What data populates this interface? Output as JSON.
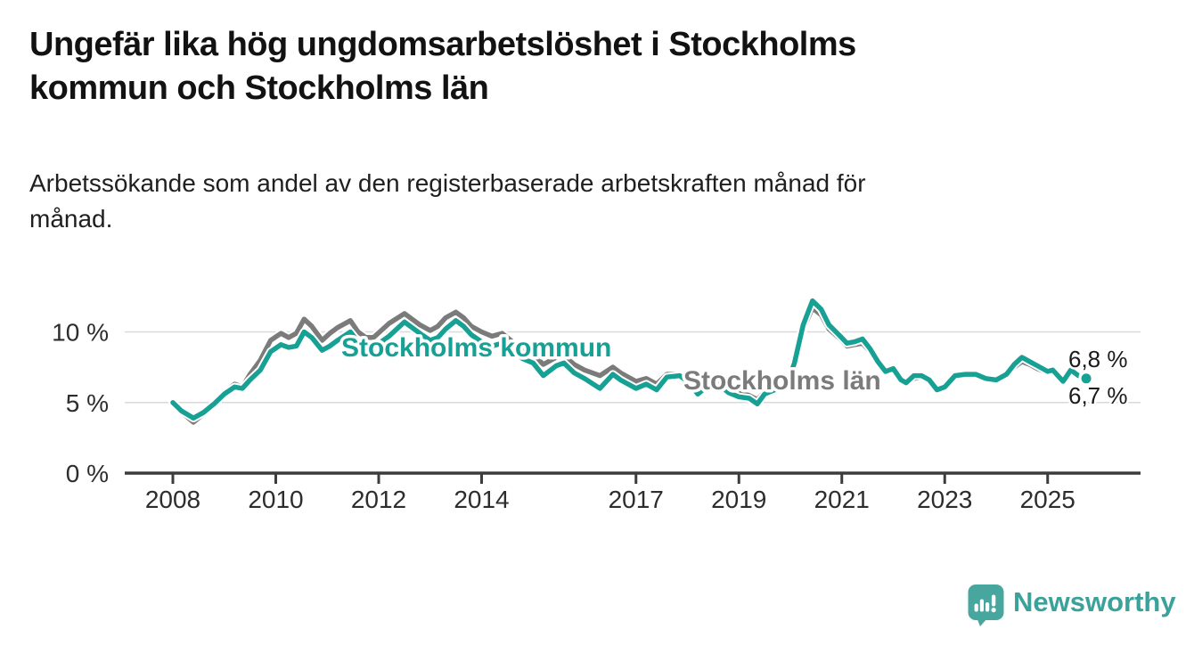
{
  "title": "Ungefär lika hög ungdomsarbetslöshet i Stockholms\nkommun och Stockholms län",
  "subtitle": "Arbetssökande som andel av den registerbaserade arbetskraften månad för\nmånad.",
  "branding": {
    "logo_text": "Newsworthy",
    "logo_icon": "speech-bubble-with-bar-chart-and-exclamation"
  },
  "colors": {
    "kommun": "#17a094",
    "lan": "#7b7b7b",
    "grid": "#d9d9d9",
    "axis": "#3c3c3c",
    "tick_text": "#2d2d2d",
    "value_text": "#1a1a1a",
    "logo": "#47a79f",
    "logo_text": "#3ba29b"
  },
  "chart_data": {
    "type": "line",
    "unit": "%",
    "grid": "horizontal",
    "x_range_years": [
      2007.1,
      2026.8
    ],
    "y_range": [
      0,
      12.6
    ],
    "x_tick_values": [
      2008,
      2010,
      2012,
      2014,
      2017,
      2019,
      2021,
      2023,
      2025
    ],
    "x_tick_labels": [
      "2008",
      "2010",
      "2012",
      "2014",
      "2017",
      "2019",
      "2021",
      "2023",
      "2025"
    ],
    "y_ticks": [
      {
        "value": 0,
        "label": "0 %"
      },
      {
        "value": 5,
        "label": "5 %"
      },
      {
        "value": 10,
        "label": "10 %"
      }
    ],
    "x": [
      2008.0,
      2008.17,
      2008.4,
      2008.6,
      2008.8,
      2009.0,
      2009.2,
      2009.35,
      2009.5,
      2009.7,
      2009.9,
      2010.1,
      2010.25,
      2010.4,
      2010.55,
      2010.7,
      2010.9,
      2011.05,
      2011.2,
      2011.45,
      2011.6,
      2011.75,
      2011.9,
      2012.05,
      2012.2,
      2012.5,
      2012.65,
      2012.8,
      2013.0,
      2013.15,
      2013.3,
      2013.5,
      2013.65,
      2013.8,
      2014.0,
      2014.2,
      2014.4,
      2014.6,
      2014.8,
      2015.0,
      2015.2,
      2015.45,
      2015.6,
      2015.8,
      2016.0,
      2016.3,
      2016.55,
      2016.7,
      2017.0,
      2017.2,
      2017.4,
      2017.6,
      2017.85,
      2018.0,
      2018.2,
      2018.4,
      2018.6,
      2018.8,
      2019.0,
      2019.2,
      2019.36,
      2019.5,
      2019.7,
      2019.9,
      2020.08,
      2020.25,
      2020.43,
      2020.6,
      2020.75,
      2020.97,
      2021.1,
      2021.25,
      2021.4,
      2021.55,
      2021.7,
      2021.85,
      2022.0,
      2022.15,
      2022.25,
      2022.4,
      2022.55,
      2022.7,
      2022.85,
      2023.0,
      2023.2,
      2023.4,
      2023.6,
      2023.8,
      2024.0,
      2024.2,
      2024.35,
      2024.5,
      2024.65,
      2024.8,
      2025.0,
      2025.1,
      2025.3,
      2025.45,
      2025.6,
      2025.75
    ],
    "series": [
      {
        "name": "Stockholms län",
        "color": "#7b7b7b",
        "final_label": "6,8 %",
        "final_value": 6.8,
        "values": [
          5.0,
          4.3,
          3.6,
          4.2,
          4.9,
          5.7,
          6.3,
          6.1,
          7.0,
          8.0,
          9.4,
          9.9,
          9.6,
          9.9,
          10.9,
          10.4,
          9.4,
          9.9,
          10.3,
          10.8,
          10.0,
          9.6,
          9.6,
          10.1,
          10.6,
          11.3,
          10.9,
          10.5,
          10.1,
          10.4,
          11.0,
          11.4,
          11.0,
          10.4,
          10.0,
          9.7,
          9.9,
          9.3,
          8.8,
          8.4,
          7.7,
          8.2,
          8.3,
          7.7,
          7.3,
          6.9,
          7.5,
          7.1,
          6.5,
          6.7,
          6.3,
          7.0,
          7.0,
          6.7,
          6.0,
          6.4,
          6.5,
          6.0,
          5.7,
          5.5,
          5.2,
          5.8,
          6.0,
          6.1,
          7.8,
          10.2,
          11.7,
          11.2,
          10.2,
          9.5,
          9.0,
          9.1,
          9.2,
          8.6,
          7.8,
          7.2,
          7.3,
          6.5,
          6.3,
          6.7,
          6.8,
          6.5,
          5.9,
          6.1,
          6.8,
          6.9,
          6.9,
          6.6,
          6.6,
          6.9,
          7.5,
          7.9,
          7.7,
          7.4,
          7.1,
          7.2,
          6.6,
          7.2,
          6.9,
          6.8
        ]
      },
      {
        "name": "Stockholms kommun",
        "color": "#17a094",
        "final_label": "6,7 %",
        "final_value": 6.7,
        "values": [
          5.0,
          4.4,
          3.9,
          4.3,
          4.9,
          5.6,
          6.1,
          6.0,
          6.6,
          7.3,
          8.6,
          9.1,
          8.9,
          9.0,
          10.0,
          9.6,
          8.7,
          9.0,
          9.4,
          10.0,
          9.3,
          8.9,
          8.9,
          9.3,
          9.7,
          10.7,
          10.3,
          9.9,
          9.4,
          9.6,
          10.2,
          10.8,
          10.4,
          9.8,
          9.3,
          9.0,
          9.2,
          8.6,
          8.1,
          7.8,
          6.9,
          7.6,
          7.8,
          7.1,
          6.7,
          6.0,
          7.0,
          6.6,
          6.0,
          6.3,
          5.9,
          6.8,
          6.9,
          6.5,
          5.6,
          6.2,
          6.3,
          5.7,
          5.4,
          5.3,
          4.9,
          5.6,
          5.9,
          6.0,
          7.8,
          10.5,
          12.2,
          11.6,
          10.5,
          9.7,
          9.2,
          9.3,
          9.5,
          8.8,
          7.9,
          7.2,
          7.4,
          6.6,
          6.4,
          6.9,
          6.9,
          6.6,
          5.9,
          6.1,
          6.9,
          7.0,
          7.0,
          6.7,
          6.6,
          7.0,
          7.7,
          8.2,
          7.9,
          7.6,
          7.2,
          7.3,
          6.5,
          7.3,
          6.9,
          6.7
        ]
      }
    ],
    "series_inline_labels": [
      "Stockholms kommun",
      "Stockholms län"
    ]
  }
}
